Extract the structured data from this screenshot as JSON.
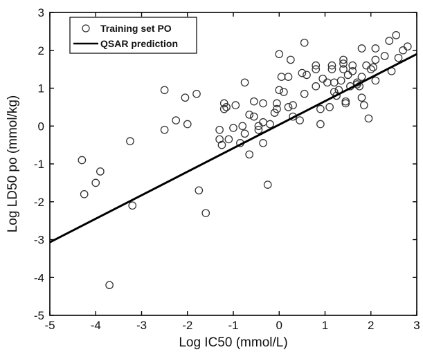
{
  "chart_data": {
    "type": "scatter",
    "xlabel": "Log IC50 (mmol/L)",
    "ylabel": "Log LD50 po (mmol/kg)",
    "xlim": [
      -5,
      3
    ],
    "ylim": [
      -5,
      3
    ],
    "x_ticks": [
      -5,
      -4,
      -3,
      -2,
      -1,
      0,
      1,
      2,
      3
    ],
    "y_ticks": [
      -5,
      -4,
      -3,
      -2,
      -1,
      0,
      1,
      2,
      3
    ],
    "x_tick_labels": [
      "-5",
      "-4",
      "-3",
      "-2",
      "-1",
      "0",
      "1",
      "2",
      "3"
    ],
    "y_tick_labels": [
      "-5",
      "-4",
      "-3",
      "-2",
      "-1",
      "0",
      "1",
      "2",
      "3"
    ],
    "grid": false,
    "legend_position": "top-left",
    "series": [
      {
        "name": "Training set PO",
        "marker": "open-circle",
        "points": [
          [
            -4.3,
            -0.9
          ],
          [
            -4.25,
            -1.8
          ],
          [
            -4.0,
            -1.5
          ],
          [
            -3.9,
            -1.2
          ],
          [
            -3.7,
            -4.2
          ],
          [
            -3.25,
            -0.4
          ],
          [
            -3.2,
            -2.1
          ],
          [
            -2.5,
            0.95
          ],
          [
            -2.5,
            -0.1
          ],
          [
            -2.25,
            0.15
          ],
          [
            -2.05,
            0.75
          ],
          [
            -2.0,
            0.05
          ],
          [
            -1.8,
            0.85
          ],
          [
            -1.75,
            -1.7
          ],
          [
            -1.6,
            -2.3
          ],
          [
            -1.3,
            -0.1
          ],
          [
            -1.3,
            -0.35
          ],
          [
            -1.25,
            -0.5
          ],
          [
            -1.2,
            0.6
          ],
          [
            -1.2,
            0.45
          ],
          [
            -1.15,
            0.5
          ],
          [
            -1.1,
            -0.35
          ],
          [
            -1.0,
            -0.05
          ],
          [
            -0.95,
            0.55
          ],
          [
            -0.85,
            -0.45
          ],
          [
            -0.8,
            0.0
          ],
          [
            -0.75,
            1.15
          ],
          [
            -0.75,
            -0.2
          ],
          [
            -0.65,
            -0.75
          ],
          [
            -0.65,
            0.3
          ],
          [
            -0.55,
            0.25
          ],
          [
            -0.55,
            0.65
          ],
          [
            -0.45,
            0.0
          ],
          [
            -0.45,
            -0.1
          ],
          [
            -0.35,
            0.6
          ],
          [
            -0.35,
            0.1
          ],
          [
            -0.35,
            -0.45
          ],
          [
            -0.25,
            -1.55
          ],
          [
            -0.2,
            0.05
          ],
          [
            -0.1,
            0.35
          ],
          [
            -0.05,
            0.6
          ],
          [
            -0.05,
            0.45
          ],
          [
            0.0,
            1.9
          ],
          [
            0.0,
            0.95
          ],
          [
            0.05,
            1.3
          ],
          [
            0.1,
            0.9
          ],
          [
            0.2,
            1.3
          ],
          [
            0.2,
            0.5
          ],
          [
            0.25,
            1.75
          ],
          [
            0.3,
            0.55
          ],
          [
            0.3,
            0.25
          ],
          [
            0.45,
            0.15
          ],
          [
            0.5,
            1.4
          ],
          [
            0.55,
            2.2
          ],
          [
            0.55,
            0.85
          ],
          [
            0.6,
            1.35
          ],
          [
            0.8,
            1.5
          ],
          [
            0.8,
            1.05
          ],
          [
            0.8,
            1.6
          ],
          [
            0.9,
            0.45
          ],
          [
            0.9,
            0.05
          ],
          [
            0.95,
            1.25
          ],
          [
            1.05,
            1.15
          ],
          [
            1.1,
            0.5
          ],
          [
            1.15,
            1.6
          ],
          [
            1.15,
            1.5
          ],
          [
            1.2,
            1.15
          ],
          [
            1.2,
            0.9
          ],
          [
            1.25,
            0.8
          ],
          [
            1.3,
            0.95
          ],
          [
            1.35,
            1.2
          ],
          [
            1.4,
            1.75
          ],
          [
            1.4,
            1.65
          ],
          [
            1.4,
            1.5
          ],
          [
            1.45,
            0.65
          ],
          [
            1.45,
            0.6
          ],
          [
            1.5,
            1.35
          ],
          [
            1.55,
            1.05
          ],
          [
            1.6,
            1.6
          ],
          [
            1.6,
            1.45
          ],
          [
            1.7,
            1.15
          ],
          [
            1.7,
            1.1
          ],
          [
            1.75,
            1.05
          ],
          [
            1.8,
            2.05
          ],
          [
            1.8,
            1.3
          ],
          [
            1.8,
            0.75
          ],
          [
            1.85,
            0.55
          ],
          [
            1.9,
            1.6
          ],
          [
            1.95,
            0.2
          ],
          [
            2.0,
            1.5
          ],
          [
            2.05,
            1.55
          ],
          [
            2.1,
            1.2
          ],
          [
            2.1,
            2.05
          ],
          [
            2.1,
            1.75
          ],
          [
            2.3,
            1.85
          ],
          [
            2.4,
            2.25
          ],
          [
            2.45,
            1.45
          ],
          [
            2.55,
            2.4
          ],
          [
            2.6,
            1.8
          ],
          [
            2.7,
            2.0
          ],
          [
            2.8,
            2.1
          ]
        ]
      },
      {
        "name": "QSAR prediction",
        "marker": "line",
        "x": [
          -5,
          3
        ],
        "y": [
          -3.07,
          1.9
        ]
      }
    ],
    "colors": {
      "marker": "#333333",
      "line": "#000000",
      "axis": "#000000"
    }
  }
}
